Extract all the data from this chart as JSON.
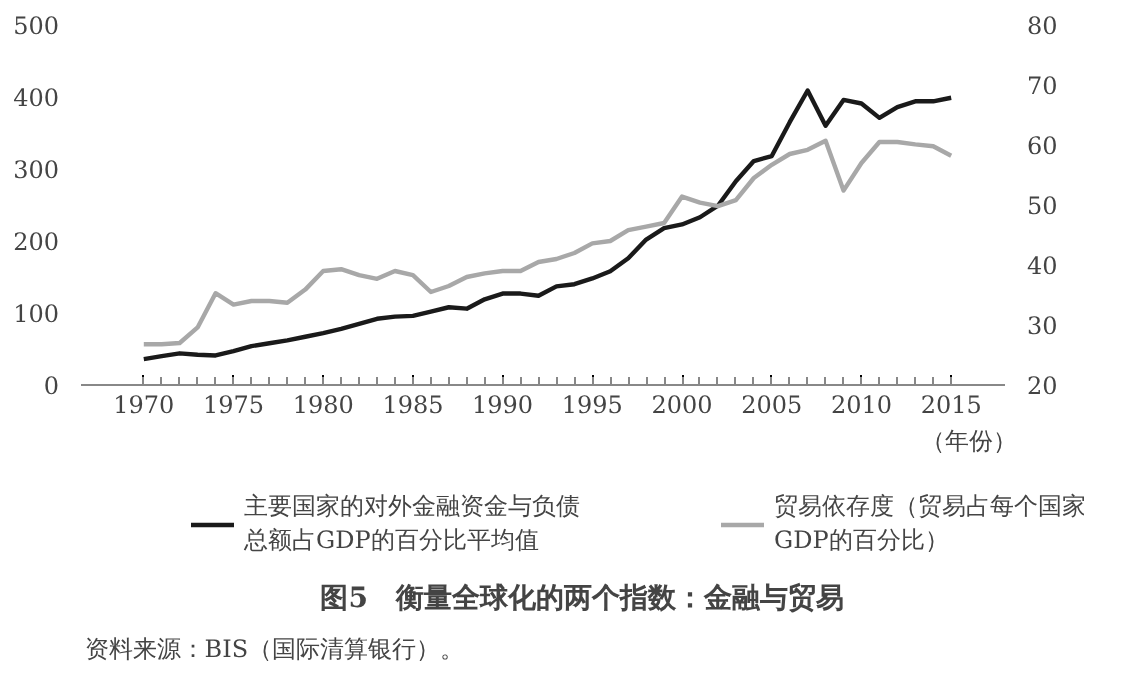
{
  "chart_data": {
    "type": "line",
    "title": "图5　衡量全球化的两个指数：金融与贸易",
    "xlabel": "（年份）",
    "annotations": [
      "资料来源：BIS（国际清算银行）。"
    ],
    "x": [
      1970,
      1971,
      1972,
      1973,
      1974,
      1975,
      1976,
      1977,
      1978,
      1979,
      1980,
      1981,
      1982,
      1983,
      1984,
      1985,
      1986,
      1987,
      1988,
      1989,
      1990,
      1991,
      1992,
      1993,
      1994,
      1995,
      1996,
      1997,
      1998,
      1999,
      2000,
      2001,
      2002,
      2003,
      2004,
      2005,
      2006,
      2007,
      2008,
      2009,
      2010,
      2011,
      2012,
      2013,
      2014,
      2015
    ],
    "series": [
      {
        "name": "主要国家的对外金融资金与负债总额占GDP的百分比平均值",
        "color": "#1a1a1a",
        "values": [
          36,
          40,
          44,
          42,
          41,
          47,
          54,
          58,
          62,
          67,
          72,
          78,
          85,
          92,
          95,
          96,
          102,
          108,
          106,
          119,
          127,
          127,
          124,
          137,
          140,
          148,
          158,
          176,
          202,
          218,
          223,
          233,
          249,
          283,
          311,
          318,
          365,
          409,
          360,
          396,
          391,
          371,
          386,
          394,
          394,
          399
        ]
      },
      {
        "name": "贸易依存度（贸易占每个国家GDP的百分比）",
        "color": "#a8a8a8",
        "axis": "y2",
        "values": [
          26.8,
          26.8,
          27,
          29.6,
          35.3,
          33.4,
          34,
          34,
          33.7,
          35.9,
          39,
          39.3,
          38.3,
          37.7,
          39,
          38.3,
          35.5,
          36.5,
          38,
          38.6,
          39,
          39,
          40.5,
          41,
          42,
          43.6,
          44,
          45.8,
          46.4,
          47,
          51.4,
          50.4,
          49.8,
          50.8,
          54.5,
          56.7,
          58.5,
          59.2,
          60.7,
          52.4,
          57,
          60.5,
          60.5,
          60.1,
          59.8,
          58.2
        ]
      }
    ],
    "xlim": [
      1966.5,
      2018
    ],
    "xticks": [
      1970,
      1975,
      1980,
      1985,
      1990,
      1995,
      2000,
      2005,
      2010,
      2015
    ],
    "ylim": [
      0,
      500
    ],
    "yticks": [
      0,
      100,
      200,
      300,
      400,
      500
    ],
    "y2lim": [
      20,
      80
    ],
    "y2ticks": [
      20,
      30,
      40,
      50,
      60,
      70,
      80
    ],
    "grid": false,
    "legend": "bottom",
    "marker": "none",
    "line_style": "solid"
  }
}
